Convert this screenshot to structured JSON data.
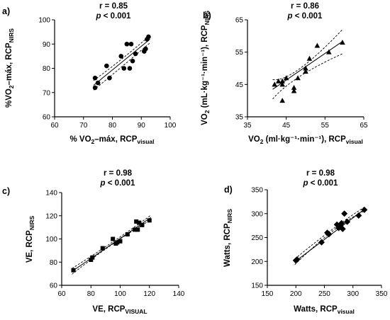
{
  "chart_data": [
    {
      "panel": "a)",
      "type": "scatter",
      "stat_r": "r = 0.85",
      "stat_p": "< 0.001",
      "xlabel_main": "% VO",
      "xlabel_sub2": "2",
      "xlabel_rest": "–máx, RCP",
      "xlabel_subscript": "visual",
      "ylabel_main": "%VO",
      "ylabel_sub2": "2",
      "ylabel_rest": "–máx, RCP",
      "ylabel_subscript": "NIRS",
      "xlim": [
        60,
        100
      ],
      "ylim": [
        60,
        100
      ],
      "xticks": [
        60,
        70,
        80,
        90,
        100
      ],
      "yticks": [
        60,
        70,
        80,
        90,
        100
      ],
      "marker": "circle",
      "points": [
        {
          "x": 74,
          "y": 76
        },
        {
          "x": 74,
          "y": 72
        },
        {
          "x": 75,
          "y": 74
        },
        {
          "x": 78,
          "y": 81
        },
        {
          "x": 79,
          "y": 76
        },
        {
          "x": 83,
          "y": 85
        },
        {
          "x": 84,
          "y": 80
        },
        {
          "x": 85,
          "y": 90
        },
        {
          "x": 86,
          "y": 80
        },
        {
          "x": 86.5,
          "y": 90
        },
        {
          "x": 87,
          "y": 83
        },
        {
          "x": 88,
          "y": 86
        },
        {
          "x": 91,
          "y": 87
        },
        {
          "x": 91.5,
          "y": 88
        },
        {
          "x": 92,
          "y": 92
        },
        {
          "x": 92.5,
          "y": 93
        }
      ],
      "fit": {
        "x": [
          73.5,
          93
        ],
        "y": [
          73,
          92
        ]
      },
      "ci_upper": {
        "x": [
          73.5,
          83,
          93
        ],
        "y": [
          75,
          83.6,
          93.5
        ]
      },
      "ci_lower": {
        "x": [
          73.5,
          83,
          93
        ],
        "y": [
          71,
          80.4,
          90.5
        ]
      }
    },
    {
      "panel": "b)",
      "type": "scatter",
      "stat_r": "r = 0.86",
      "stat_p": "< 0.001",
      "xlabel_main": "VO",
      "xlabel_sub2": "2",
      "xlabel_rest": " (ml·kg⁻¹·min⁻¹), RCP",
      "xlabel_subscript": "visual",
      "ylabel_main": "VO",
      "ylabel_sub2": "2",
      "ylabel_rest": " (mL·kg⁻¹·min⁻¹), RCP",
      "ylabel_subscript": "NIRS",
      "xlim": [
        35,
        65
      ],
      "ylim": [
        35,
        65
      ],
      "xticks": [
        35,
        45,
        55,
        65
      ],
      "yticks": [
        35,
        45,
        55,
        65
      ],
      "marker": "triangle",
      "points": [
        {
          "x": 42,
          "y": 45
        },
        {
          "x": 43,
          "y": 46
        },
        {
          "x": 44,
          "y": 46
        },
        {
          "x": 44,
          "y": 45
        },
        {
          "x": 44,
          "y": 40
        },
        {
          "x": 45,
          "y": 47
        },
        {
          "x": 47,
          "y": 44
        },
        {
          "x": 47,
          "y": 43
        },
        {
          "x": 48,
          "y": 47
        },
        {
          "x": 50,
          "y": 49
        },
        {
          "x": 50,
          "y": 50
        },
        {
          "x": 51,
          "y": 53
        },
        {
          "x": 53,
          "y": 57
        },
        {
          "x": 56,
          "y": 55
        },
        {
          "x": 59.5,
          "y": 58
        }
      ],
      "fit": {
        "x": [
          41.5,
          59.5
        ],
        "y": [
          43.5,
          58.3
        ]
      },
      "ci_upper": {
        "x": [
          41.5,
          48.5,
          59.5
        ],
        "y": [
          46.5,
          49.9,
          62
        ]
      },
      "ci_lower": {
        "x": [
          41.5,
          48.5,
          59.5
        ],
        "y": [
          40.5,
          47.5,
          54.5
        ]
      }
    },
    {
      "panel": "c)",
      "type": "scatter",
      "stat_r": "r = 0.98",
      "stat_p": "< 0.001",
      "xlabel_main": "VE, RCP",
      "xlabel_subscript": "VISUAL",
      "ylabel_main": "VE, RCP",
      "ylabel_subscript": "NIRS",
      "xlim": [
        60,
        140
      ],
      "ylim": [
        60,
        140
      ],
      "xticks": [
        60,
        80,
        100,
        120,
        140
      ],
      "yticks": [
        60,
        80,
        100,
        120,
        140
      ],
      "marker": "square",
      "points": [
        {
          "x": 68,
          "y": 73
        },
        {
          "x": 80,
          "y": 82
        },
        {
          "x": 81,
          "y": 84
        },
        {
          "x": 88,
          "y": 92
        },
        {
          "x": 95,
          "y": 100
        },
        {
          "x": 97,
          "y": 96
        },
        {
          "x": 98,
          "y": 97
        },
        {
          "x": 100,
          "y": 98
        },
        {
          "x": 105,
          "y": 104
        },
        {
          "x": 110,
          "y": 108
        },
        {
          "x": 111,
          "y": 115
        },
        {
          "x": 112,
          "y": 108
        },
        {
          "x": 113,
          "y": 114
        },
        {
          "x": 115,
          "y": 112
        },
        {
          "x": 120,
          "y": 116
        }
      ],
      "fit": {
        "x": [
          67,
          121
        ],
        "y": [
          72,
          118.5
        ]
      },
      "ci_upper": {
        "x": [
          67,
          95,
          121
        ],
        "y": [
          74.5,
          97.5,
          120.5
        ]
      },
      "ci_lower": {
        "x": [
          67,
          95,
          121
        ],
        "y": [
          69.5,
          95.7,
          116.5
        ]
      }
    },
    {
      "panel": "d)",
      "type": "scatter",
      "stat_r": "r = 0.98",
      "stat_p": "< 0.001",
      "xlabel_main": "Watts, RCP",
      "xlabel_subscript": "visual",
      "ylabel_main": "Watts, RCP",
      "ylabel_subscript": "NIRS",
      "xlim": [
        150,
        350
      ],
      "ylim": [
        150,
        350
      ],
      "xticks": [
        150,
        200,
        250,
        300,
        350
      ],
      "yticks": [
        150,
        200,
        250,
        300,
        350
      ],
      "marker": "diamond",
      "points": [
        {
          "x": 200,
          "y": 202
        },
        {
          "x": 202,
          "y": 204
        },
        {
          "x": 245,
          "y": 240
        },
        {
          "x": 255,
          "y": 260
        },
        {
          "x": 258,
          "y": 257
        },
        {
          "x": 272,
          "y": 277
        },
        {
          "x": 275,
          "y": 270
        },
        {
          "x": 278,
          "y": 275
        },
        {
          "x": 280,
          "y": 280
        },
        {
          "x": 282,
          "y": 268
        },
        {
          "x": 285,
          "y": 300
        },
        {
          "x": 290,
          "y": 283
        },
        {
          "x": 310,
          "y": 296
        },
        {
          "x": 320,
          "y": 308
        }
      ],
      "fit": {
        "x": [
          198,
          322
        ],
        "y": [
          199,
          311
        ]
      },
      "ci_upper": {
        "x": [
          198,
          265,
          322
        ],
        "y": [
          205,
          268,
          315
        ]
      },
      "ci_lower": {
        "x": [
          198,
          265,
          322
        ],
        "y": [
          193,
          264,
          307
        ]
      }
    }
  ]
}
